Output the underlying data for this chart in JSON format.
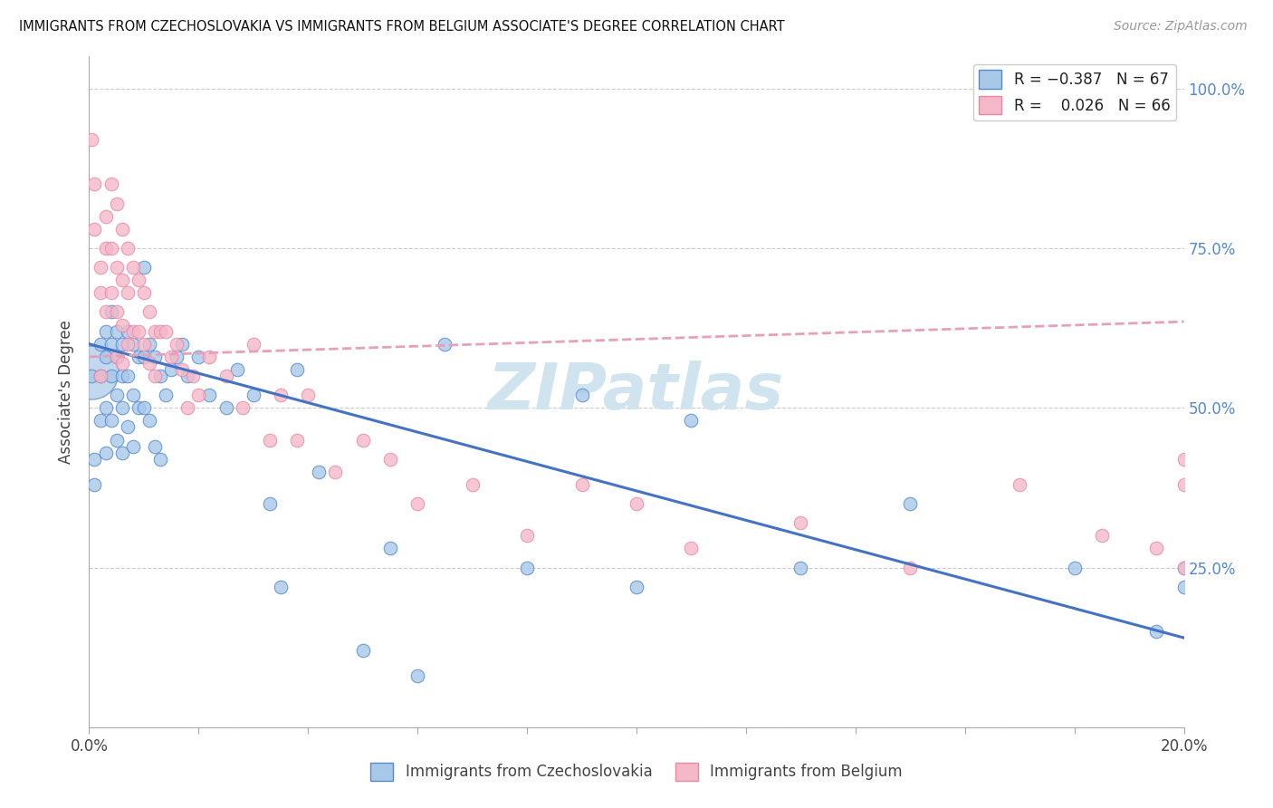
{
  "title": "IMMIGRANTS FROM CZECHOSLOVAKIA VS IMMIGRANTS FROM BELGIUM ASSOCIATE'S DEGREE CORRELATION CHART",
  "source": "Source: ZipAtlas.com",
  "ylabel": "Associate's Degree",
  "y_tick_vals": [
    0.0,
    0.25,
    0.5,
    0.75,
    1.0
  ],
  "legend_r1": "R = -0.387",
  "legend_n1": "N = 67",
  "legend_r2": "R =  0.026",
  "legend_n2": "N = 66",
  "color_blue": "#a8c8e8",
  "color_pink": "#f4b8c8",
  "color_blue_edge": "#5588cc",
  "color_pink_edge": "#e888a8",
  "color_line_blue": "#4472c4",
  "color_line_pink": "#e8a0b8",
  "color_right_axis": "#5588cc",
  "watermark_color": "#d0e4f0",
  "xlim": [
    0.0,
    0.2
  ],
  "ylim": [
    0.0,
    1.05
  ],
  "blue_line_x": [
    0.0,
    0.2
  ],
  "blue_line_y": [
    0.6,
    0.14
  ],
  "pink_line_x": [
    0.0,
    0.2
  ],
  "pink_line_y": [
    0.58,
    0.635
  ],
  "blue_scatter_x": [
    0.0005,
    0.001,
    0.001,
    0.002,
    0.002,
    0.002,
    0.003,
    0.003,
    0.003,
    0.003,
    0.004,
    0.004,
    0.004,
    0.004,
    0.005,
    0.005,
    0.005,
    0.005,
    0.006,
    0.006,
    0.006,
    0.006,
    0.007,
    0.007,
    0.007,
    0.008,
    0.008,
    0.008,
    0.009,
    0.009,
    0.01,
    0.01,
    0.01,
    0.011,
    0.011,
    0.012,
    0.012,
    0.013,
    0.013,
    0.014,
    0.015,
    0.016,
    0.017,
    0.018,
    0.02,
    0.022,
    0.025,
    0.027,
    0.03,
    0.033,
    0.035,
    0.038,
    0.042,
    0.05,
    0.055,
    0.06,
    0.065,
    0.08,
    0.09,
    0.1,
    0.11,
    0.13,
    0.15,
    0.18,
    0.195,
    0.2,
    0.2
  ],
  "blue_scatter_y": [
    0.55,
    0.42,
    0.38,
    0.6,
    0.55,
    0.48,
    0.62,
    0.58,
    0.5,
    0.43,
    0.65,
    0.6,
    0.55,
    0.48,
    0.62,
    0.58,
    0.52,
    0.45,
    0.6,
    0.55,
    0.5,
    0.43,
    0.62,
    0.55,
    0.47,
    0.6,
    0.52,
    0.44,
    0.58,
    0.5,
    0.72,
    0.58,
    0.5,
    0.6,
    0.48,
    0.58,
    0.44,
    0.55,
    0.42,
    0.52,
    0.56,
    0.58,
    0.6,
    0.55,
    0.58,
    0.52,
    0.5,
    0.56,
    0.52,
    0.35,
    0.22,
    0.56,
    0.4,
    0.12,
    0.28,
    0.08,
    0.6,
    0.25,
    0.52,
    0.22,
    0.48,
    0.25,
    0.35,
    0.25,
    0.15,
    0.25,
    0.22
  ],
  "blue_scatter_size": [
    120,
    120,
    120,
    120,
    120,
    120,
    120,
    120,
    120,
    120,
    120,
    120,
    120,
    120,
    120,
    120,
    120,
    120,
    120,
    120,
    120,
    120,
    120,
    120,
    120,
    120,
    120,
    120,
    120,
    120,
    120,
    120,
    120,
    120,
    120,
    120,
    120,
    120,
    120,
    120,
    120,
    120,
    120,
    120,
    120,
    120,
    120,
    120,
    120,
    120,
    120,
    120,
    120,
    120,
    120,
    120,
    120,
    120,
    120,
    120,
    120,
    120,
    120,
    120,
    120,
    120,
    120
  ],
  "blue_large_x": [
    0.0005
  ],
  "blue_large_y": [
    0.555
  ],
  "pink_scatter_x": [
    0.0005,
    0.001,
    0.001,
    0.002,
    0.002,
    0.002,
    0.003,
    0.003,
    0.003,
    0.004,
    0.004,
    0.004,
    0.005,
    0.005,
    0.005,
    0.005,
    0.006,
    0.006,
    0.006,
    0.006,
    0.007,
    0.007,
    0.007,
    0.008,
    0.008,
    0.009,
    0.009,
    0.01,
    0.01,
    0.011,
    0.011,
    0.012,
    0.012,
    0.013,
    0.014,
    0.015,
    0.016,
    0.017,
    0.018,
    0.019,
    0.02,
    0.022,
    0.025,
    0.028,
    0.03,
    0.033,
    0.035,
    0.038,
    0.04,
    0.045,
    0.05,
    0.055,
    0.06,
    0.07,
    0.08,
    0.09,
    0.1,
    0.11,
    0.13,
    0.15,
    0.17,
    0.185,
    0.195,
    0.2,
    0.2,
    0.2
  ],
  "pink_scatter_y": [
    0.92,
    0.85,
    0.78,
    0.72,
    0.68,
    0.55,
    0.8,
    0.75,
    0.65,
    0.85,
    0.75,
    0.68,
    0.82,
    0.72,
    0.65,
    0.58,
    0.78,
    0.7,
    0.63,
    0.57,
    0.75,
    0.68,
    0.6,
    0.72,
    0.62,
    0.7,
    0.62,
    0.68,
    0.6,
    0.65,
    0.57,
    0.62,
    0.55,
    0.62,
    0.62,
    0.58,
    0.6,
    0.56,
    0.5,
    0.55,
    0.52,
    0.58,
    0.55,
    0.5,
    0.6,
    0.45,
    0.52,
    0.45,
    0.52,
    0.4,
    0.45,
    0.42,
    0.35,
    0.38,
    0.3,
    0.38,
    0.35,
    0.28,
    0.32,
    0.25,
    0.38,
    0.3,
    0.28,
    0.42,
    0.38,
    0.25
  ]
}
